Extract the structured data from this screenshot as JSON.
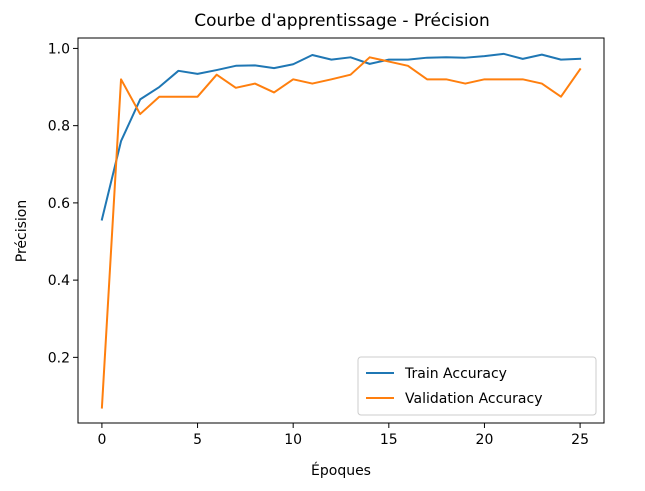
{
  "chart_data": {
    "type": "line",
    "title": "Courbe d'apprentissage - Précision",
    "xlabel": "Époques",
    "ylabel": "Précision",
    "xlim": [
      -1.25,
      26.25
    ],
    "ylim": [
      0.03,
      1.027
    ],
    "xticks": [
      0,
      5,
      10,
      15,
      20,
      25
    ],
    "yticks": [
      0.2,
      0.4,
      0.6,
      0.8,
      1.0
    ],
    "xtick_labels": [
      "0",
      "5",
      "10",
      "15",
      "20",
      "25"
    ],
    "ytick_labels": [
      "0.2",
      "0.4",
      "0.6",
      "0.8",
      "1.0"
    ],
    "grid": false,
    "legend_position": "lower-right",
    "x": [
      0,
      1,
      2,
      3,
      4,
      5,
      6,
      7,
      8,
      9,
      10,
      11,
      12,
      13,
      14,
      15,
      16,
      17,
      18,
      19,
      20,
      21,
      22,
      23,
      24,
      25
    ],
    "series": [
      {
        "name": "Train Accuracy",
        "color": "#1f77b4",
        "values": [
          0.557,
          0.76,
          0.868,
          0.9,
          0.942,
          0.934,
          0.944,
          0.955,
          0.956,
          0.949,
          0.959,
          0.983,
          0.971,
          0.977,
          0.96,
          0.971,
          0.971,
          0.976,
          0.977,
          0.976,
          0.98,
          0.986,
          0.973,
          0.984,
          0.971,
          0.973
        ]
      },
      {
        "name": "Validation Accuracy",
        "color": "#ff7f0e",
        "values": [
          0.07,
          0.92,
          0.83,
          0.875,
          0.875,
          0.875,
          0.932,
          0.898,
          0.909,
          0.886,
          0.92,
          0.909,
          0.92,
          0.932,
          0.977,
          0.966,
          0.955,
          0.92,
          0.92,
          0.909,
          0.92,
          0.92,
          0.92,
          0.909,
          0.875,
          0.946
        ]
      }
    ]
  }
}
